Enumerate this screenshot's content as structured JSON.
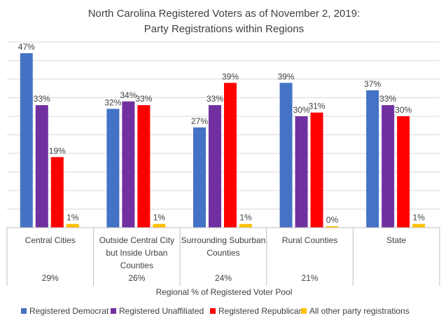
{
  "chart_data": {
    "type": "bar",
    "title": "North Carolina Registered Voters as of November 2, 2019:",
    "subtitle": "Party Registrations within Regions",
    "categories": [
      [
        "Central Cities"
      ],
      [
        "Outside Central City",
        "but Inside Urban",
        "Counties"
      ],
      [
        "Surrounding Suburban",
        "Counties"
      ],
      [
        "Rural Counties"
      ],
      [
        "State"
      ]
    ],
    "regional_share": [
      "29%",
      "26%",
      "24%",
      "21%",
      ""
    ],
    "xlabel": "Regional % of Registered Voter Pool",
    "ylabel": "",
    "ylim": [
      0,
      50
    ],
    "grid": true,
    "legend_position": "bottom",
    "series": [
      {
        "name": "Registered Democrat",
        "color": "#4472C4",
        "values": [
          47,
          32,
          27,
          39,
          37
        ],
        "labels": [
          "47%",
          "32%",
          "27%",
          "39%",
          "37%"
        ]
      },
      {
        "name": "Registered Unaffiliated",
        "color": "#7030A0",
        "values": [
          33,
          34,
          33,
          30,
          33
        ],
        "labels": [
          "33%",
          "34%",
          "33%",
          "30%",
          "33%"
        ]
      },
      {
        "name": "Registered Republican",
        "color": "#FF0000",
        "values": [
          19,
          33,
          39,
          31,
          30
        ],
        "labels": [
          "19%",
          "33%",
          "39%",
          "31%",
          "30%"
        ]
      },
      {
        "name": "All other party registrations",
        "color": "#FFC000",
        "values": [
          1,
          1,
          1,
          0.4,
          1
        ],
        "labels": [
          "1%",
          "1%",
          "1%",
          "0%",
          "1%"
        ]
      }
    ]
  }
}
